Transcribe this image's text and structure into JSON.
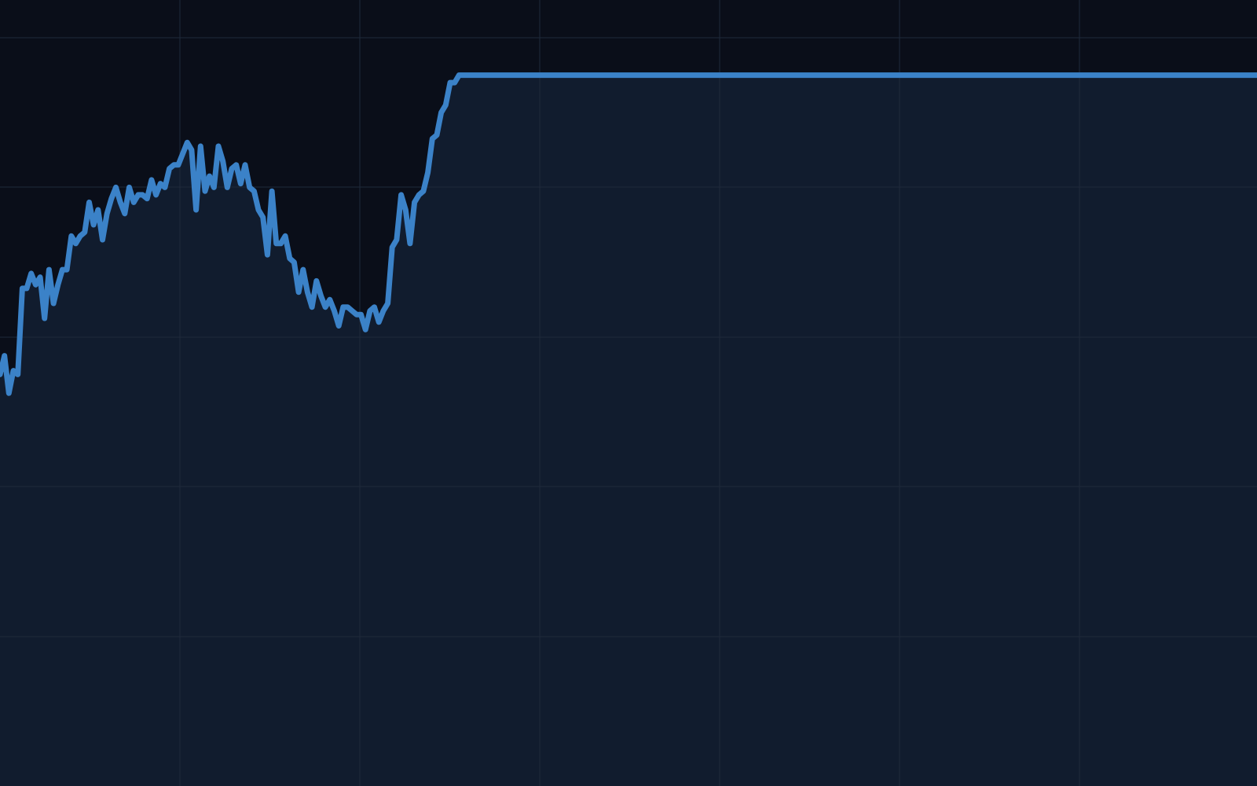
{
  "colors": {
    "background": "#0a0e19",
    "area_fill": "#111c2e",
    "line": "#3b82c8",
    "grid": "#1f2a3b"
  },
  "chart_data": {
    "type": "area",
    "title": "",
    "xlabel": "",
    "ylabel": "",
    "grid": true,
    "legend": "none",
    "x_ticks": 7,
    "y_ticks": 5,
    "xlim": [
      0,
      300
    ],
    "ylim": [
      0,
      100
    ],
    "series": [
      {
        "values": [
          55.0,
          57.5,
          52.5,
          55.5,
          55.0,
          66.5,
          66.5,
          68.5,
          67.0,
          68.0,
          62.5,
          69.0,
          64.5,
          67.0,
          69.0,
          69.0,
          73.5,
          72.5,
          73.5,
          74.0,
          78.0,
          75.0,
          77.0,
          73.0,
          76.5,
          78.5,
          80.0,
          78.0,
          76.5,
          80.0,
          78.0,
          79.0,
          79.0,
          78.5,
          81.0,
          79.0,
          80.5,
          80.0,
          82.5,
          83.0,
          83.0,
          84.5,
          86.0,
          85.0,
          77.0,
          85.5,
          79.5,
          81.5,
          80.0,
          85.5,
          83.5,
          80.0,
          82.5,
          83.0,
          80.5,
          83.0,
          80.0,
          79.5,
          77.0,
          76.0,
          71.0,
          79.5,
          72.5,
          72.5,
          73.5,
          70.5,
          70.0,
          66.0,
          69.0,
          66.0,
          64.0,
          67.5,
          65.5,
          64.0,
          65.0,
          63.5,
          61.5,
          64.0,
          64.0,
          63.5,
          63.0,
          63.0,
          61.0,
          63.5,
          64.0,
          62.0,
          63.5,
          64.5,
          72.0,
          73.0,
          79.0,
          77.0,
          72.5,
          78.0,
          79.0,
          79.5,
          82.0,
          86.5,
          87.0,
          90.0,
          91.0,
          94.0,
          94.0,
          95.0,
          95.0
        ]
      }
    ]
  }
}
